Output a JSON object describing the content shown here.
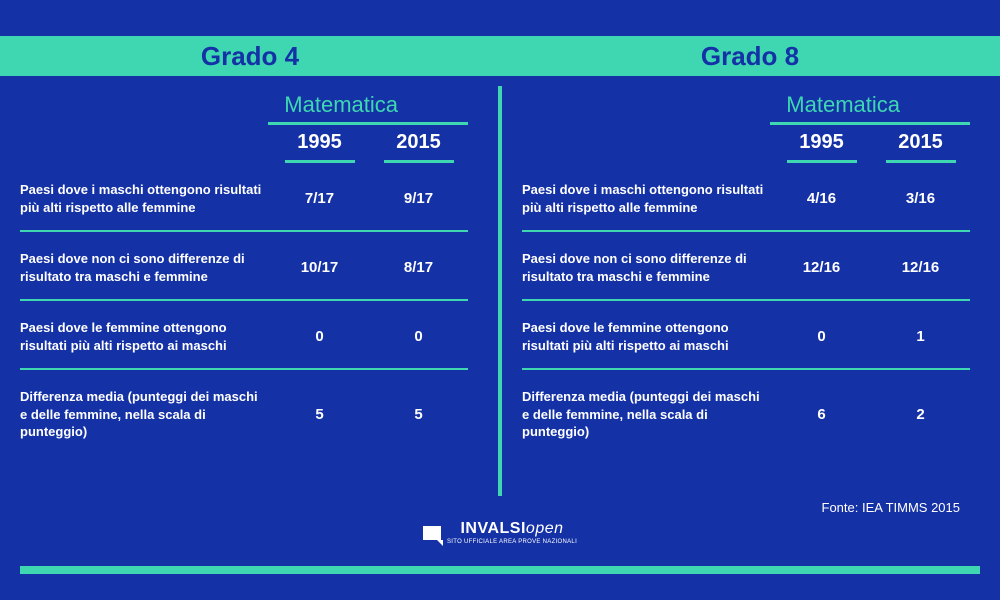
{
  "colors": {
    "background": "#1431a6",
    "accent": "#3ed7b2",
    "text": "#ffffff",
    "header_text": "#1431a6"
  },
  "header": {
    "left": "Grado 4",
    "right": "Grado 8"
  },
  "subject": "Matematica",
  "years": [
    "1995",
    "2015"
  ],
  "row_labels": [
    "Paesi dove i maschi ottengono risultati più alti rispetto alle femmine",
    "Paesi dove non ci sono differenze di risultato tra maschi e femmine",
    "Paesi dove le femmine ottengono risultati più alti rispetto ai maschi",
    "Differenza media (punteggi dei maschi e delle femmine, nella scala di punteggio)"
  ],
  "panels": {
    "grado4": {
      "rows": [
        [
          "7/17",
          "9/17"
        ],
        [
          "10/17",
          "8/17"
        ],
        [
          "0",
          "0"
        ],
        [
          "5",
          "5"
        ]
      ]
    },
    "grado8": {
      "rows": [
        [
          "4/16",
          "3/16"
        ],
        [
          "12/16",
          "12/16"
        ],
        [
          "0",
          "1"
        ],
        [
          "6",
          "2"
        ]
      ]
    }
  },
  "source": "Fonte: IEA TIMMS 2015",
  "logo": {
    "main_bold": "INVALSI",
    "main_ital": "open",
    "sub": "SITO UFFICIALE AREA PROVE NAZIONALI"
  }
}
